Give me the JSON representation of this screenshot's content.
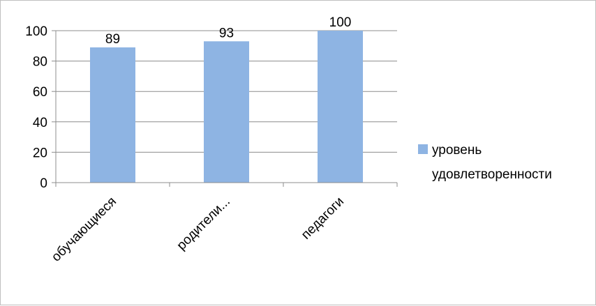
{
  "chart_data": {
    "type": "bar",
    "categories": [
      "обучающиеся",
      "родители...",
      "педагоги"
    ],
    "series": [
      {
        "name": "уровень удовлетворенности",
        "values": [
          89,
          93,
          100
        ],
        "color": "#8EB4E3"
      }
    ],
    "data_labels": [
      "89",
      "93",
      "100"
    ],
    "ylim": [
      0,
      100
    ],
    "yticks": [
      0,
      20,
      40,
      60,
      80,
      100
    ],
    "grid": true,
    "legend": {
      "position": "right",
      "lines": [
        "уровень",
        "удовлетворенности"
      ]
    },
    "colors": {
      "bar": "#8EB4E3",
      "grid": "#8c8c8c",
      "axis": "#8c8c8c"
    }
  }
}
